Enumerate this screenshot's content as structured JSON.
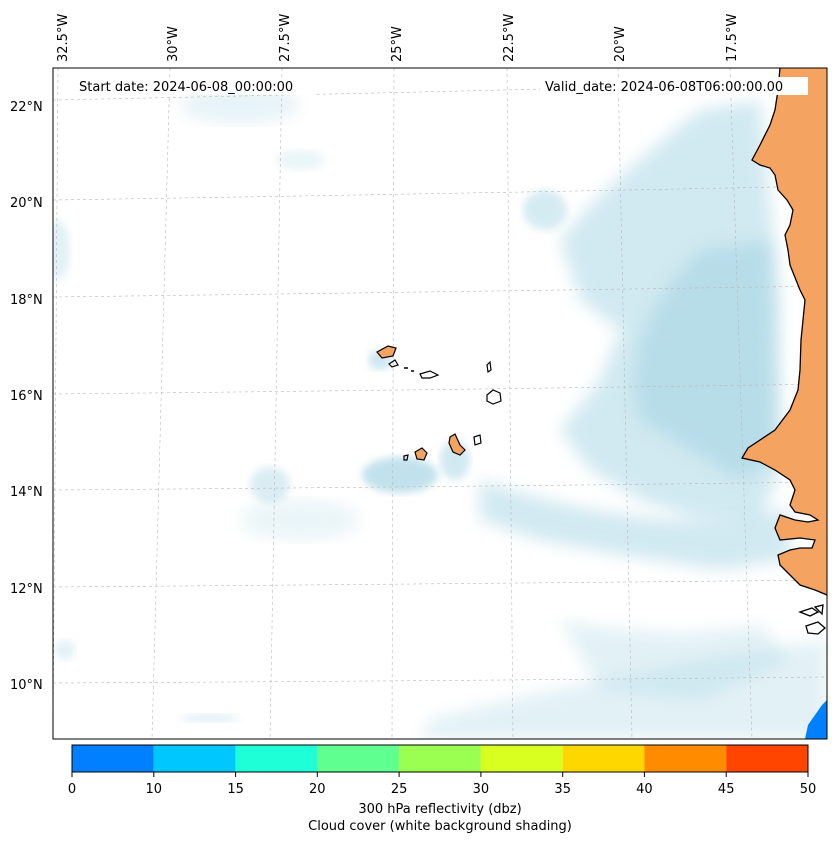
{
  "map": {
    "start_date": "Start date: 2024-06-08_00:00:00",
    "valid_date": "Valid_date: 2024-06-08T06:00:00.00",
    "lon_labels": [
      "32.5°W",
      "30°W",
      "27.5°W",
      "25°W",
      "22.5°W",
      "20°W",
      "17.5°W"
    ],
    "lat_labels": [
      "22°N",
      "20°N",
      "18°N",
      "16°N",
      "14°N",
      "12°N",
      "10°N"
    ],
    "colors": {
      "land": "#f4a460",
      "cloud": "#add8e6",
      "ocean": "#ffffff"
    }
  },
  "colorbar": {
    "ticks": [
      "0",
      "10",
      "15",
      "20",
      "25",
      "30",
      "35",
      "40",
      "45",
      "50"
    ],
    "colors": [
      "#0080ff",
      "#00c8ff",
      "#1effd8",
      "#5fff90",
      "#9aff50",
      "#d8ff20",
      "#ffd700",
      "#ff8c00",
      "#ff4500"
    ],
    "label1": "300 hPa reflectivity (dbz)",
    "label2": "Cloud cover (white background shading)"
  }
}
